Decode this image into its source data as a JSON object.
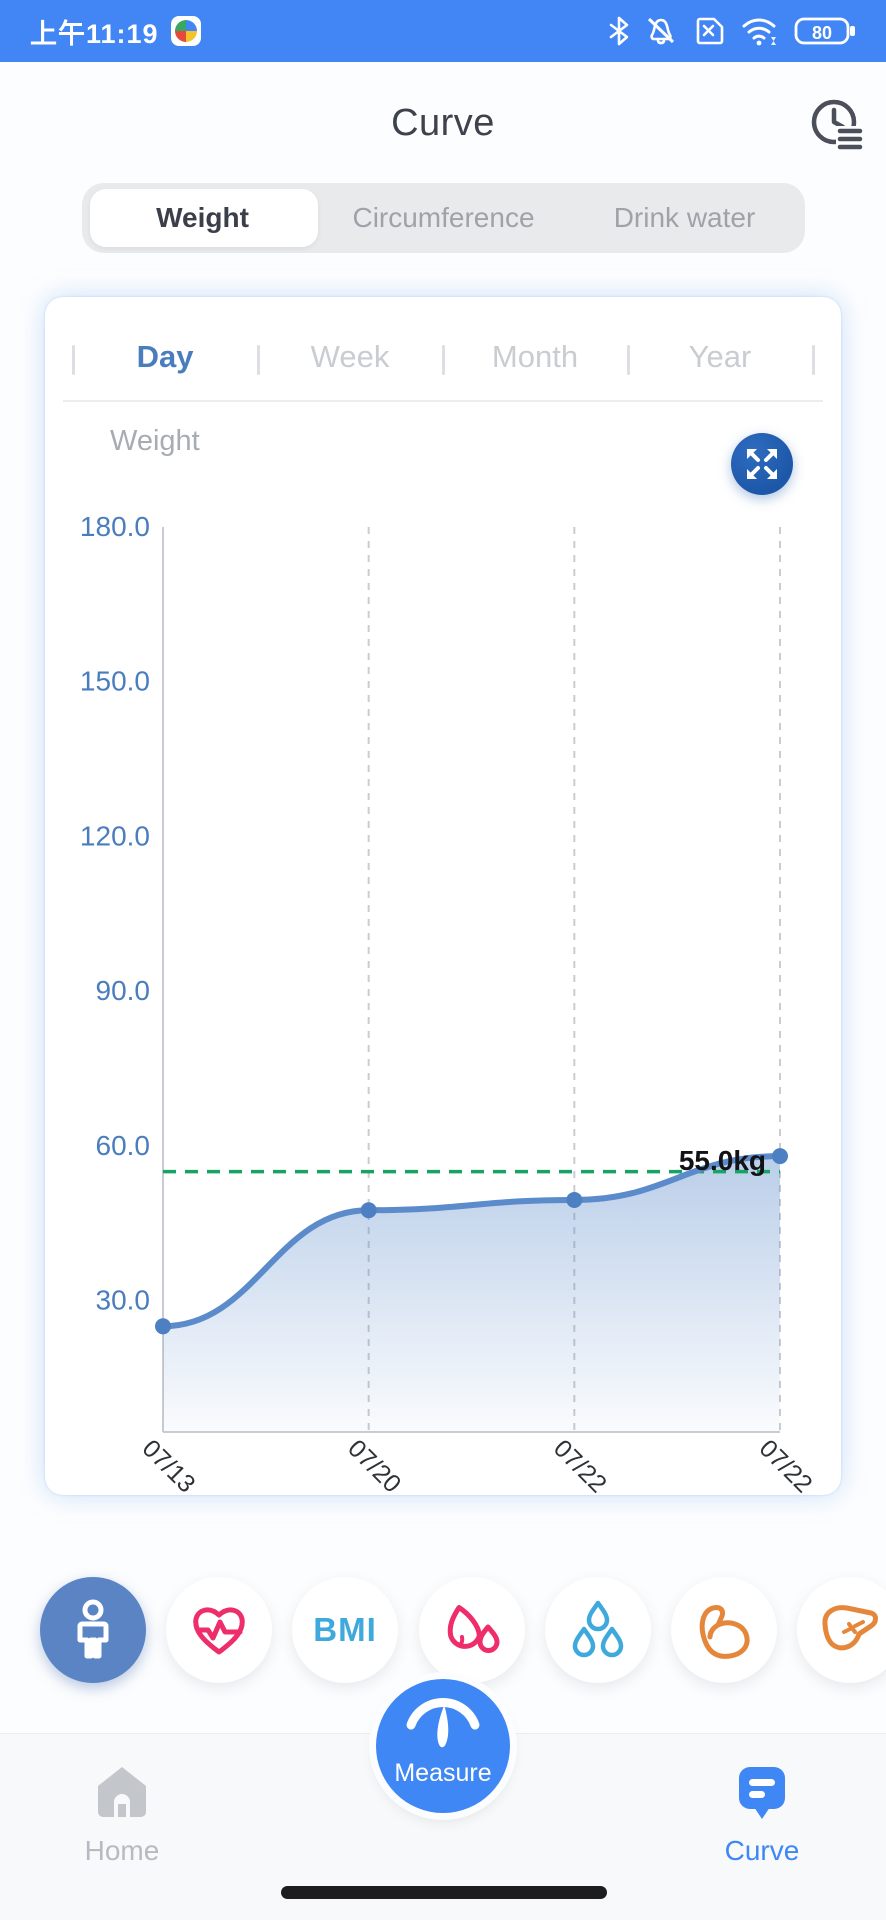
{
  "status_bar": {
    "time": "上午11:19",
    "battery_level": "80",
    "icons": [
      "app-logo",
      "bluetooth",
      "notifications-muted",
      "sim-error",
      "wifi",
      "battery"
    ]
  },
  "header": {
    "title": "Curve"
  },
  "metric_tabs": {
    "items": [
      {
        "label": "Weight",
        "active": true
      },
      {
        "label": "Circumference",
        "active": false
      },
      {
        "label": "Drink water",
        "active": false
      }
    ]
  },
  "period_tabs": {
    "items": [
      {
        "label": "Day",
        "active": true
      },
      {
        "label": "Week",
        "active": false
      },
      {
        "label": "Month",
        "active": false
      },
      {
        "label": "Year",
        "active": false
      }
    ]
  },
  "chart_card": {
    "title": "Weight"
  },
  "chart_data": {
    "type": "line",
    "title": "Weight",
    "x": [
      "07/13",
      "07/20",
      "07/22",
      "07/22"
    ],
    "series": [
      {
        "name": "Weight",
        "values": [
          25,
          47.5,
          49.5,
          58
        ]
      }
    ],
    "unit": "kg",
    "y_ticks": [
      180,
      150,
      120,
      90,
      60,
      30
    ],
    "y_tick_labels": [
      "180.0",
      "150.0",
      "120.0",
      "90.0",
      "60.0",
      "30.0"
    ],
    "ylim_top": 180,
    "target_line_value": 55,
    "annotation": "55.0kg",
    "grid": "vertical-dashed",
    "line_color": "#5b8bca",
    "point_color": "#4d7fc3",
    "target_color": "#16a363",
    "axis_label_color": "#4a7dbe",
    "x_label_color": "#2e3136",
    "annotation_color": "#111316"
  },
  "metric_row": {
    "items": [
      {
        "icon": "body-person",
        "selected": true
      },
      {
        "icon": "heart-rate",
        "selected": false
      },
      {
        "icon": "bmi",
        "label": "BMI",
        "selected": false
      },
      {
        "icon": "blood-drops",
        "selected": false
      },
      {
        "icon": "water-drops",
        "selected": false
      },
      {
        "icon": "muscle",
        "selected": false
      },
      {
        "icon": "liver",
        "selected": false
      }
    ]
  },
  "bottom_nav": {
    "items": [
      {
        "label": "Home",
        "active": false
      },
      {
        "label": "Measure",
        "active": false
      },
      {
        "label": "Curve",
        "active": true
      }
    ]
  },
  "colors": {
    "statusbar_blue": "#4286f5",
    "accent_blue": "#3f87f5",
    "steel_blue": "#5b84c4",
    "expand_blue": "#1d57a8",
    "tab_active_blue": "#4a7dbe",
    "pink": "#ee2d6b",
    "cyan_blue": "#3fa9dc",
    "orange": "#e5873b",
    "green": "#16a363"
  }
}
